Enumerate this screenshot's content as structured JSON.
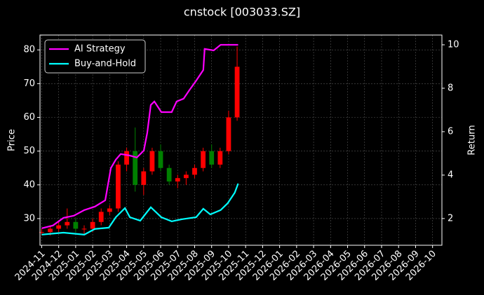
{
  "chart_data": {
    "type": "candlestick",
    "title": "cnstock [003033.SZ]",
    "ylabel": "Price",
    "y2label": "Return",
    "x": [
      0,
      0.5,
      1,
      1.5,
      2,
      2.5,
      3,
      3.5,
      4,
      4.5,
      5,
      5.5,
      6,
      6.5,
      7,
      7.5,
      8,
      8.5,
      9,
      9.5,
      10,
      10.5,
      11,
      11.5
    ],
    "open": [
      26,
      26,
      27,
      28,
      29,
      27,
      27,
      29,
      32,
      33,
      46,
      50,
      40,
      44,
      50,
      45,
      41,
      42,
      43,
      45,
      50,
      46,
      50,
      60
    ],
    "high": [
      27,
      28,
      29,
      33,
      30,
      28,
      30,
      33,
      34,
      47,
      51,
      57,
      45,
      51,
      52,
      46,
      43,
      44,
      46,
      51,
      52,
      51,
      62,
      81
    ],
    "low": [
      25,
      25,
      26,
      27,
      26,
      25,
      26,
      28,
      31,
      32,
      44,
      38,
      37,
      43,
      44,
      40,
      39,
      40,
      42,
      44,
      45,
      45,
      49,
      59
    ],
    "close": [
      26,
      27,
      28,
      29,
      27,
      27,
      29,
      32,
      33,
      46,
      50,
      40,
      44,
      50,
      45,
      41,
      42,
      43,
      45,
      50,
      46,
      50,
      60,
      75
    ],
    "up_color": "#ff0000",
    "down_color": "#008000",
    "series": [
      {
        "name": "AI Strategy",
        "color": "#ff00ff",
        "axis": "y2",
        "x": [
          0,
          0.66,
          1.28,
          1.89,
          2.51,
          3.13,
          3.74,
          4.07,
          4.36,
          4.65,
          5.19,
          5.6,
          6.01,
          6.21,
          6.42,
          6.63,
          7.04,
          7.65,
          7.94,
          8.35,
          8.68,
          9.09,
          9.51,
          9.59,
          10.12,
          10.53,
          11.56
        ],
        "values": [
          1.55,
          1.68,
          2.03,
          2.13,
          2.39,
          2.55,
          2.84,
          4.32,
          4.71,
          4.97,
          4.9,
          4.81,
          5.13,
          5.94,
          7.23,
          7.39,
          6.9,
          6.9,
          7.39,
          7.52,
          7.9,
          8.35,
          8.84,
          9.81,
          9.74,
          10.0,
          10.0
        ]
      },
      {
        "name": "Buy-and-Hold",
        "color": "#00ffff",
        "axis": "y2",
        "x": [
          0,
          1.28,
          2.51,
          3.13,
          3.95,
          4.36,
          4.9,
          5.19,
          5.8,
          6.42,
          7.04,
          7.65,
          8.27,
          9.09,
          9.51,
          9.92,
          10.53,
          10.95,
          11.36,
          11.56
        ],
        "values": [
          1.26,
          1.35,
          1.26,
          1.52,
          1.58,
          2.06,
          2.48,
          2.06,
          1.9,
          2.52,
          2.06,
          1.87,
          1.97,
          2.06,
          2.45,
          2.19,
          2.39,
          2.71,
          3.19,
          3.61
        ]
      }
    ],
    "xlim": [
      -0.1,
      23.55
    ],
    "xticks": [
      {
        "value": 0,
        "label": "2024-11"
      },
      {
        "value": 1,
        "label": "2024-12"
      },
      {
        "value": 2,
        "label": "2025-01"
      },
      {
        "value": 3,
        "label": "2025-02"
      },
      {
        "value": 4,
        "label": "2025-03"
      },
      {
        "value": 5,
        "label": "2025-04"
      },
      {
        "value": 6,
        "label": "2025-05"
      },
      {
        "value": 7,
        "label": "2025-06"
      },
      {
        "value": 8,
        "label": "2025-07"
      },
      {
        "value": 9,
        "label": "2025-08"
      },
      {
        "value": 10,
        "label": "2025-09"
      },
      {
        "value": 11,
        "label": "2025-10"
      },
      {
        "value": 12,
        "label": "2025-11"
      },
      {
        "value": 13,
        "label": "2025-12"
      },
      {
        "value": 14,
        "label": "2026-01"
      },
      {
        "value": 15,
        "label": "2026-02"
      },
      {
        "value": 16,
        "label": "2026-03"
      },
      {
        "value": 17,
        "label": "2026-04"
      },
      {
        "value": 18,
        "label": "2026-05"
      },
      {
        "value": 19,
        "label": "2026-06"
      },
      {
        "value": 20,
        "label": "2026-07"
      },
      {
        "value": 21,
        "label": "2026-08"
      },
      {
        "value": 22,
        "label": "2026-09"
      },
      {
        "value": 23,
        "label": "2026-10"
      }
    ],
    "ylim": [
      22.1,
      84.4
    ],
    "yticks": [
      30,
      40,
      50,
      60,
      70,
      80
    ],
    "y2lim": [
      0.77,
      10.45
    ],
    "y2ticks": [
      2,
      4,
      6,
      8,
      10
    ],
    "grid": true,
    "legend": "upper left"
  }
}
